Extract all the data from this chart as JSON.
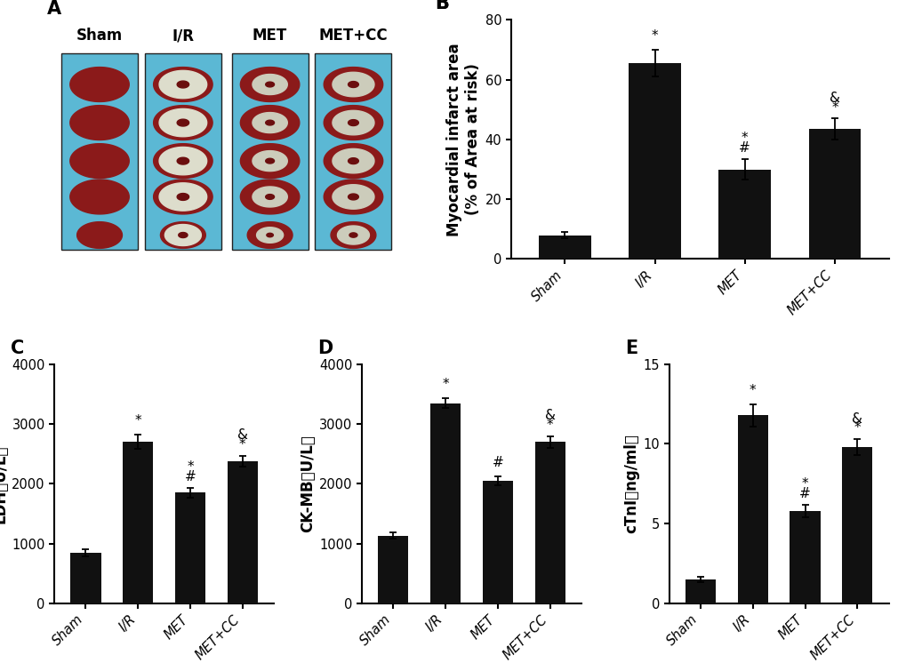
{
  "categories": [
    "Sham",
    "I/R",
    "MET",
    "MET+CC"
  ],
  "panel_B": {
    "label": "B",
    "values": [
      8.0,
      65.5,
      30.0,
      43.5
    ],
    "errors": [
      1.0,
      4.5,
      3.5,
      3.5
    ],
    "ylabel_line1": "Myocardial infarct area",
    "ylabel_line2": "(% of Area at risk)",
    "ylim": [
      0,
      80
    ],
    "yticks": [
      0,
      20,
      40,
      60,
      80
    ],
    "annotations": {
      "1": [
        "*"
      ],
      "2": [
        "*",
        "#"
      ],
      "3": [
        "&",
        "*"
      ]
    }
  },
  "panel_C": {
    "label": "C",
    "values": [
      850,
      2700,
      1850,
      2380
    ],
    "errors": [
      60,
      120,
      80,
      90
    ],
    "ylabel": "LDH (U/L)",
    "ylim": [
      0,
      4000
    ],
    "yticks": [
      0,
      1000,
      2000,
      3000,
      4000
    ],
    "annotations": {
      "1": [
        "*"
      ],
      "2": [
        "*",
        "#"
      ],
      "3": [
        "&",
        "*"
      ]
    }
  },
  "panel_D": {
    "label": "D",
    "values": [
      1130,
      3350,
      2050,
      2700
    ],
    "errors": [
      50,
      80,
      80,
      100
    ],
    "ylabel": "CK-MB (U/L)",
    "ylim": [
      0,
      4000
    ],
    "yticks": [
      0,
      1000,
      2000,
      3000,
      4000
    ],
    "annotations": {
      "1": [
        "*"
      ],
      "2": [
        "#"
      ],
      "3": [
        "&",
        "*"
      ]
    }
  },
  "panel_E": {
    "label": "E",
    "values": [
      1.5,
      11.8,
      5.8,
      9.8
    ],
    "errors": [
      0.15,
      0.7,
      0.4,
      0.5
    ],
    "ylabel": "cTnI (ng/ml)",
    "ylim": [
      0,
      15
    ],
    "yticks": [
      0,
      5,
      10,
      15
    ],
    "annotations": {
      "1": [
        "*"
      ],
      "2": [
        "*",
        "#"
      ],
      "3": [
        "&",
        "*"
      ]
    }
  },
  "col_labels": [
    "Sham",
    "I/R",
    "MET",
    "MET+CC"
  ],
  "bar_color": "#111111",
  "bar_width": 0.58,
  "capsize": 3,
  "label_fontsize": 12,
  "tick_fontsize": 10.5,
  "annot_fontsize": 11,
  "panel_label_fontsize": 15,
  "col_label_fontsize": 12
}
